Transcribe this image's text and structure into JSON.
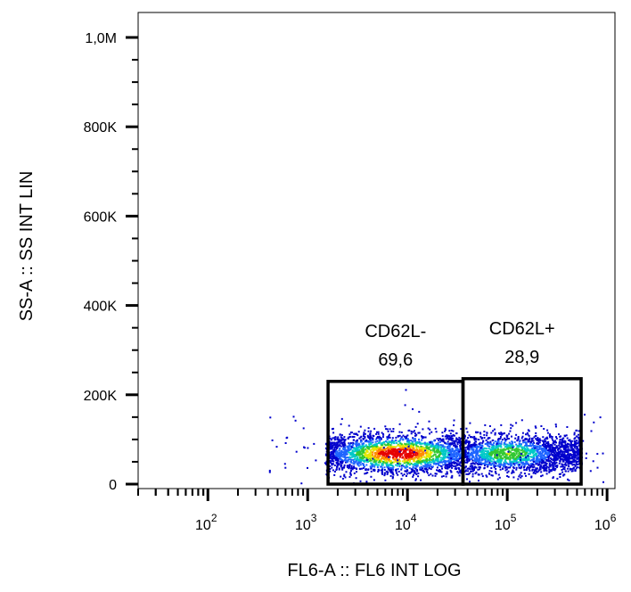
{
  "chart_data": {
    "type": "scatter",
    "title": "",
    "xlabel": "FL6-A :: FL6 INT LOG",
    "ylabel": "SS-A :: SS INT LIN",
    "x_scale": "log",
    "y_scale": "linear",
    "xlim": [
      20,
      1200000
    ],
    "ylim": [
      0,
      1000000
    ],
    "grid": false,
    "x_ticks": [
      {
        "value": 100,
        "base": "10",
        "exp": "2"
      },
      {
        "value": 1000,
        "base": "10",
        "exp": "3"
      },
      {
        "value": 10000,
        "base": "10",
        "exp": "4"
      },
      {
        "value": 100000,
        "base": "10",
        "exp": "5"
      },
      {
        "value": 1000000,
        "base": "10",
        "exp": "6"
      }
    ],
    "y_ticks": [
      {
        "value": 1000000,
        "label": "1,0M"
      },
      {
        "value": 800000,
        "label": "800K"
      },
      {
        "value": 600000,
        "label": "600K"
      },
      {
        "value": 400000,
        "label": "400K"
      },
      {
        "value": 200000,
        "label": "200K"
      },
      {
        "value": 0,
        "label": "0"
      }
    ],
    "gates": [
      {
        "name": "CD62L-",
        "percent": "69,6",
        "x_range": [
          1600,
          36000
        ],
        "y_range": [
          0,
          230000
        ]
      },
      {
        "name": "CD62L+",
        "percent": "28,9",
        "x_range": [
          36000,
          550000
        ],
        "y_range": [
          0,
          236000
        ]
      }
    ],
    "population_cloud": {
      "x_range": [
        1500,
        550000
      ],
      "y_center": 70000,
      "y_spread": 45000,
      "density_peak_x": 8000,
      "secondary_peak_x": 100000
    },
    "colors": {
      "axis": "#000000",
      "gate": "#000000",
      "density_scale": [
        "#0000cc",
        "#1e64ff",
        "#00c8c8",
        "#32c832",
        "#e6e600",
        "#ff8c00",
        "#e60000"
      ]
    }
  }
}
